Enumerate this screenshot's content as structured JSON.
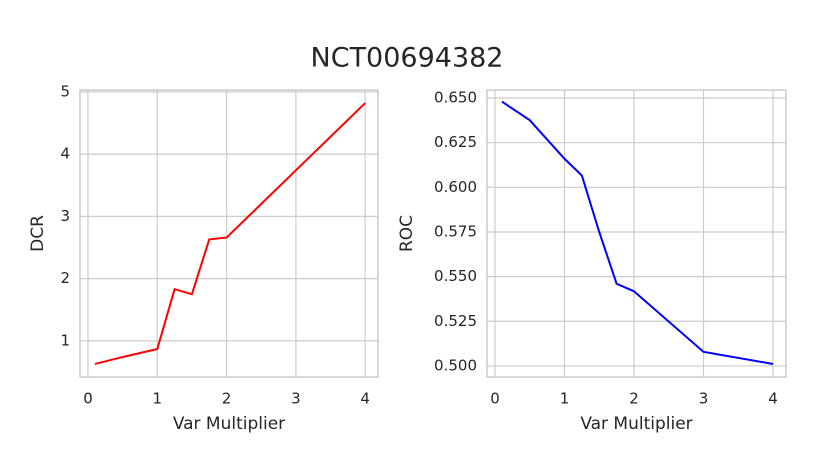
{
  "title": "NCT00694382",
  "chart_data": [
    {
      "type": "line",
      "xlabel": "Var Multiplier",
      "ylabel": "DCR",
      "x": [
        0.1,
        0.5,
        1,
        1.25,
        1.5,
        1.75,
        2,
        3,
        4
      ],
      "series": [
        {
          "color": "#ff0000",
          "values": [
            0.63,
            0.74,
            0.87,
            1.83,
            1.75,
            2.63,
            2.66,
            3.74,
            4.82
          ]
        }
      ],
      "xlim": [
        -0.115,
        4.185
      ],
      "xticks": [
        0,
        1,
        2,
        3,
        4
      ],
      "ylim": [
        0.42,
        5.03
      ],
      "yticks": [
        1,
        2,
        3,
        4,
        5
      ],
      "grid": true
    },
    {
      "type": "line",
      "xlabel": "Var Multiplier",
      "ylabel": "ROC",
      "x": [
        0.1,
        0.5,
        1,
        1.25,
        1.5,
        1.75,
        2,
        3,
        4
      ],
      "series": [
        {
          "color": "#0000ff",
          "values": [
            0.648,
            0.6376,
            0.616,
            0.6066,
            0.575,
            0.546,
            0.5418,
            0.5079,
            0.5011
          ]
        }
      ],
      "xlim": [
        -0.115,
        4.187
      ],
      "xticks": [
        0,
        1,
        2,
        3,
        4
      ],
      "ylim": [
        0.4938,
        0.6545
      ],
      "yticks": [
        {
          "value": 0.5,
          "label": "0.500"
        },
        {
          "value": 0.525,
          "label": "0.525"
        },
        {
          "value": 0.55,
          "label": "0.550"
        },
        {
          "value": 0.575,
          "label": "0.575"
        },
        {
          "value": 0.6,
          "label": "0.600"
        },
        {
          "value": 0.625,
          "label": "0.625"
        },
        {
          "value": 0.65,
          "label": "0.650"
        }
      ],
      "grid": true
    }
  ]
}
